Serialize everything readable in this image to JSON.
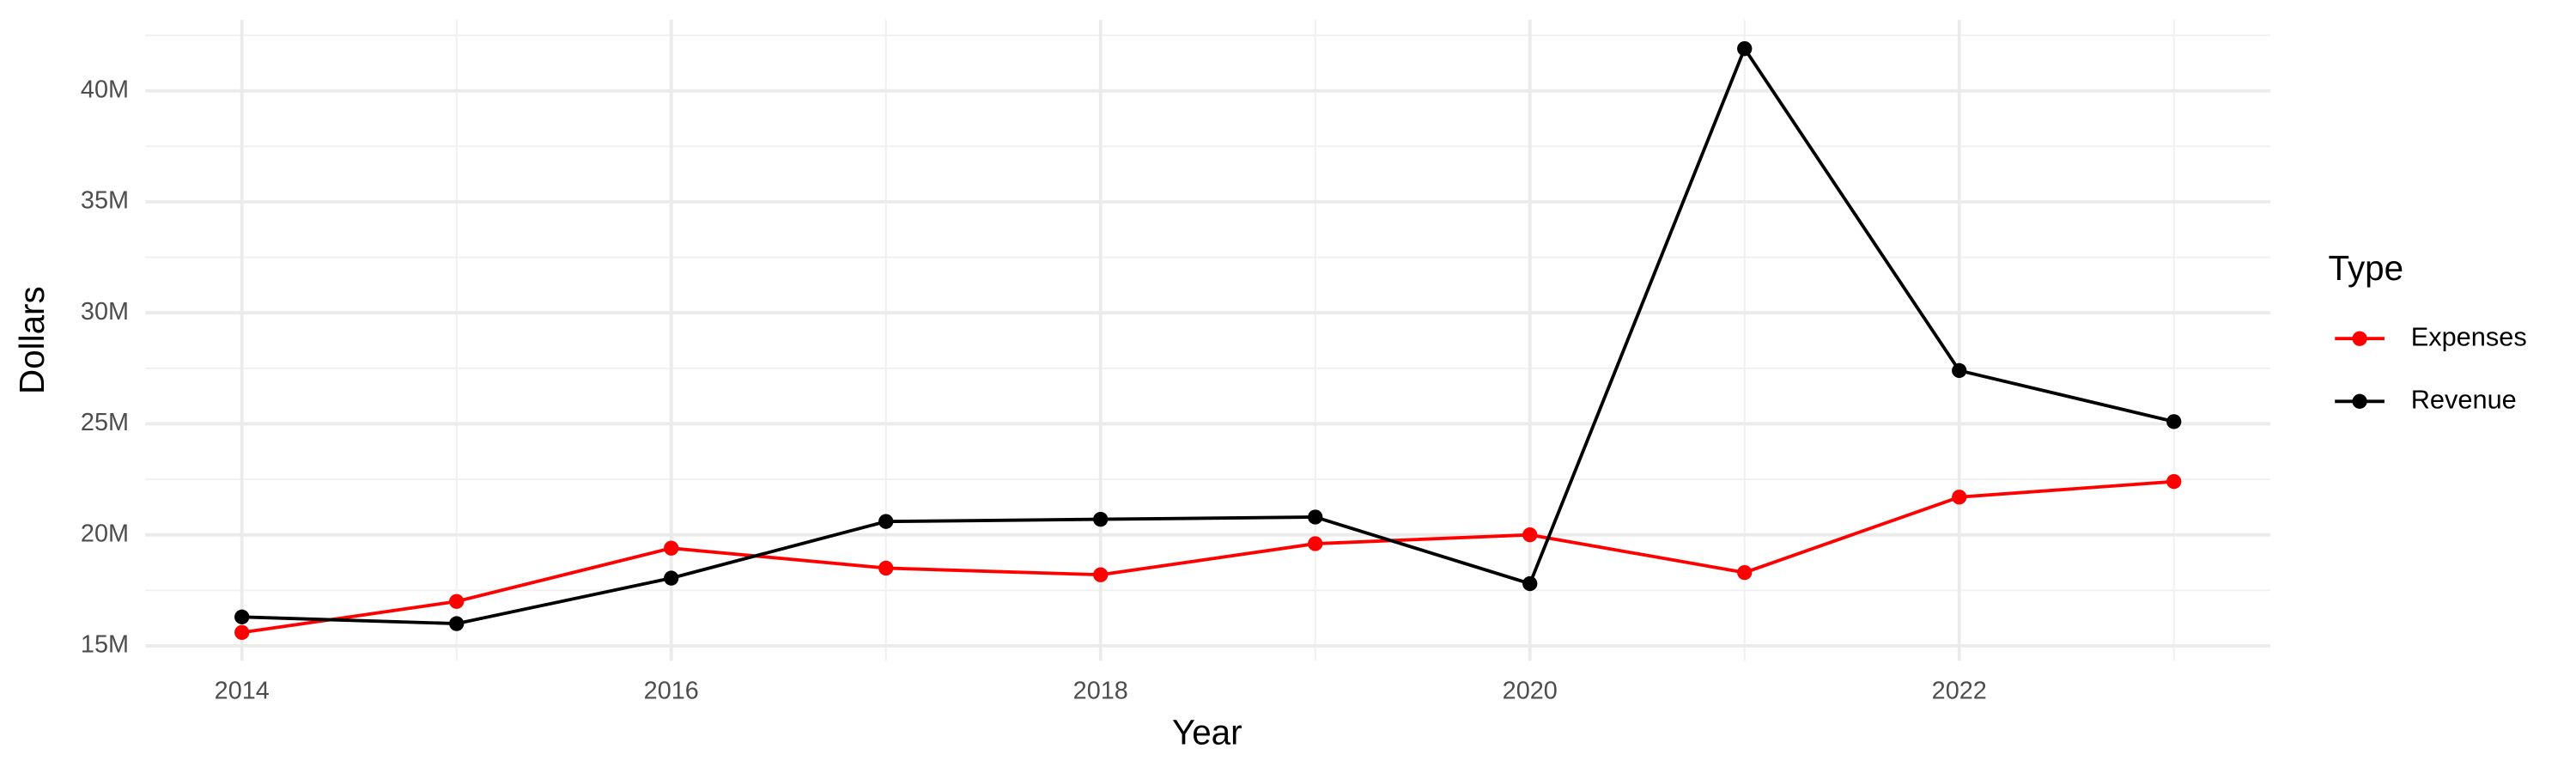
{
  "chart_data": {
    "type": "line",
    "x_label": "Year",
    "y_label": "Dollars",
    "legend_title": "Type",
    "legend_position": "right",
    "grid": true,
    "x": [
      2014,
      2015,
      2016,
      2017,
      2018,
      2019,
      2020,
      2021,
      2022,
      2023
    ],
    "series": [
      {
        "name": "Expenses",
        "color": "#ff0000",
        "values": [
          15600000,
          17000000,
          19400000,
          18500000,
          18200000,
          19600000,
          20000000,
          18300000,
          21700000,
          22400000
        ]
      },
      {
        "name": "Revenue",
        "color": "#000000",
        "values": [
          16300000,
          16000000,
          18050000,
          20600000,
          20700000,
          20800000,
          17800000,
          41900000,
          27400000,
          25100000
        ]
      }
    ],
    "xlim": [
      2013.55,
      2023.45
    ],
    "xticks": [
      2014,
      2016,
      2018,
      2020,
      2022
    ],
    "ylim": [
      14330000,
      43200000
    ],
    "yticks": [
      {
        "value": 15000000,
        "label": "15M"
      },
      {
        "value": 20000000,
        "label": "20M"
      },
      {
        "value": 25000000,
        "label": "25M"
      },
      {
        "value": 30000000,
        "label": "30M"
      },
      {
        "value": 35000000,
        "label": "35M"
      },
      {
        "value": 40000000,
        "label": "40M"
      }
    ]
  }
}
